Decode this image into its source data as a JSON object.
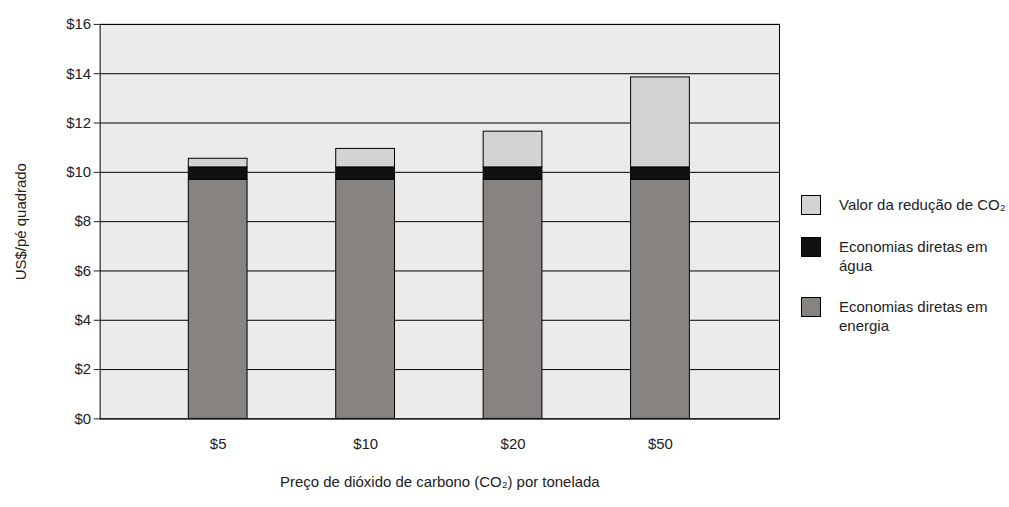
{
  "chart_data": {
    "type": "bar",
    "stacked": true,
    "xlabel": "Preço de dióxido de carbono (CO₂) por tonelada",
    "ylabel": "US$/pé quadrado",
    "categories": [
      "$5",
      "$10",
      "$20",
      "$50"
    ],
    "series": [
      {
        "name": "Economias diretas em energia",
        "color": "#878381",
        "values": [
          9.7,
          9.7,
          9.7,
          9.7
        ]
      },
      {
        "name": "Economias diretas em água",
        "color": "#111111",
        "values": [
          0.5,
          0.5,
          0.5,
          0.5
        ]
      },
      {
        "name": "Valor da redução de CO₂",
        "color": "#d3d3d3",
        "values": [
          0.35,
          0.75,
          1.45,
          3.65
        ]
      }
    ],
    "ylim": [
      0,
      16
    ],
    "yticks": [
      {
        "value": 0,
        "label": "$0"
      },
      {
        "value": 2,
        "label": "$2"
      },
      {
        "value": 4,
        "label": "$4"
      },
      {
        "value": 6,
        "label": "$6"
      },
      {
        "value": 8,
        "label": "$8"
      },
      {
        "value": 10,
        "label": "$10"
      },
      {
        "value": 12,
        "label": "$12"
      },
      {
        "value": 14,
        "label": "$14"
      },
      {
        "value": 16,
        "label": "$16"
      }
    ],
    "grid": true,
    "legend": "right"
  }
}
